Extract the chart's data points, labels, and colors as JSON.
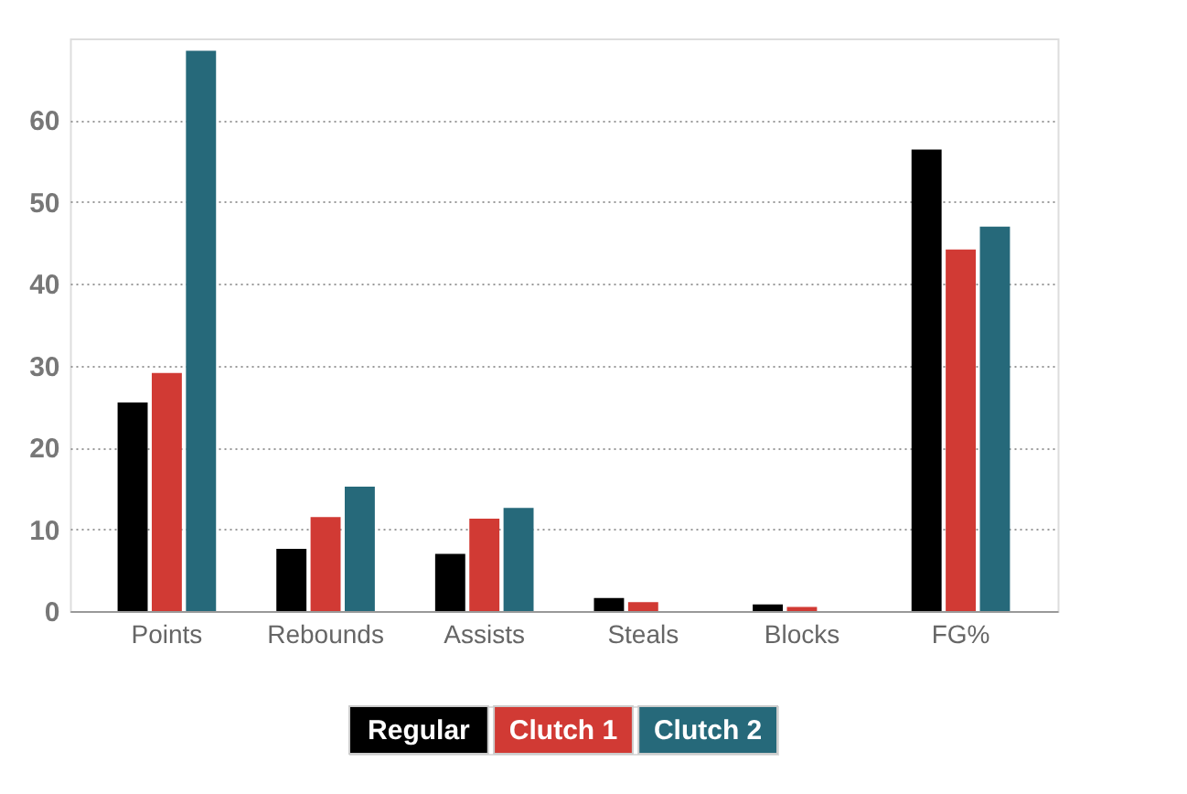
{
  "chart_data": {
    "type": "bar",
    "categories": [
      "Points",
      "Rebounds",
      "Assists",
      "Steals",
      "Blocks",
      "FG%"
    ],
    "series": [
      {
        "name": "Regular",
        "color": "#000000",
        "values": [
          25.5,
          7.6,
          7.0,
          1.6,
          0.8,
          56.4
        ]
      },
      {
        "name": "Clutch 1",
        "color": "#d13a34",
        "values": [
          29.1,
          11.5,
          11.3,
          1.1,
          0.5,
          44.2
        ]
      },
      {
        "name": "Clutch 2",
        "color": "#26697a",
        "values": [
          68.5,
          15.2,
          12.6,
          null,
          null,
          47.0
        ]
      }
    ],
    "ylim": [
      0,
      70
    ],
    "yticks": [
      0,
      10,
      20,
      30,
      40,
      50,
      60
    ],
    "grid": "y",
    "legend": "bottom"
  }
}
